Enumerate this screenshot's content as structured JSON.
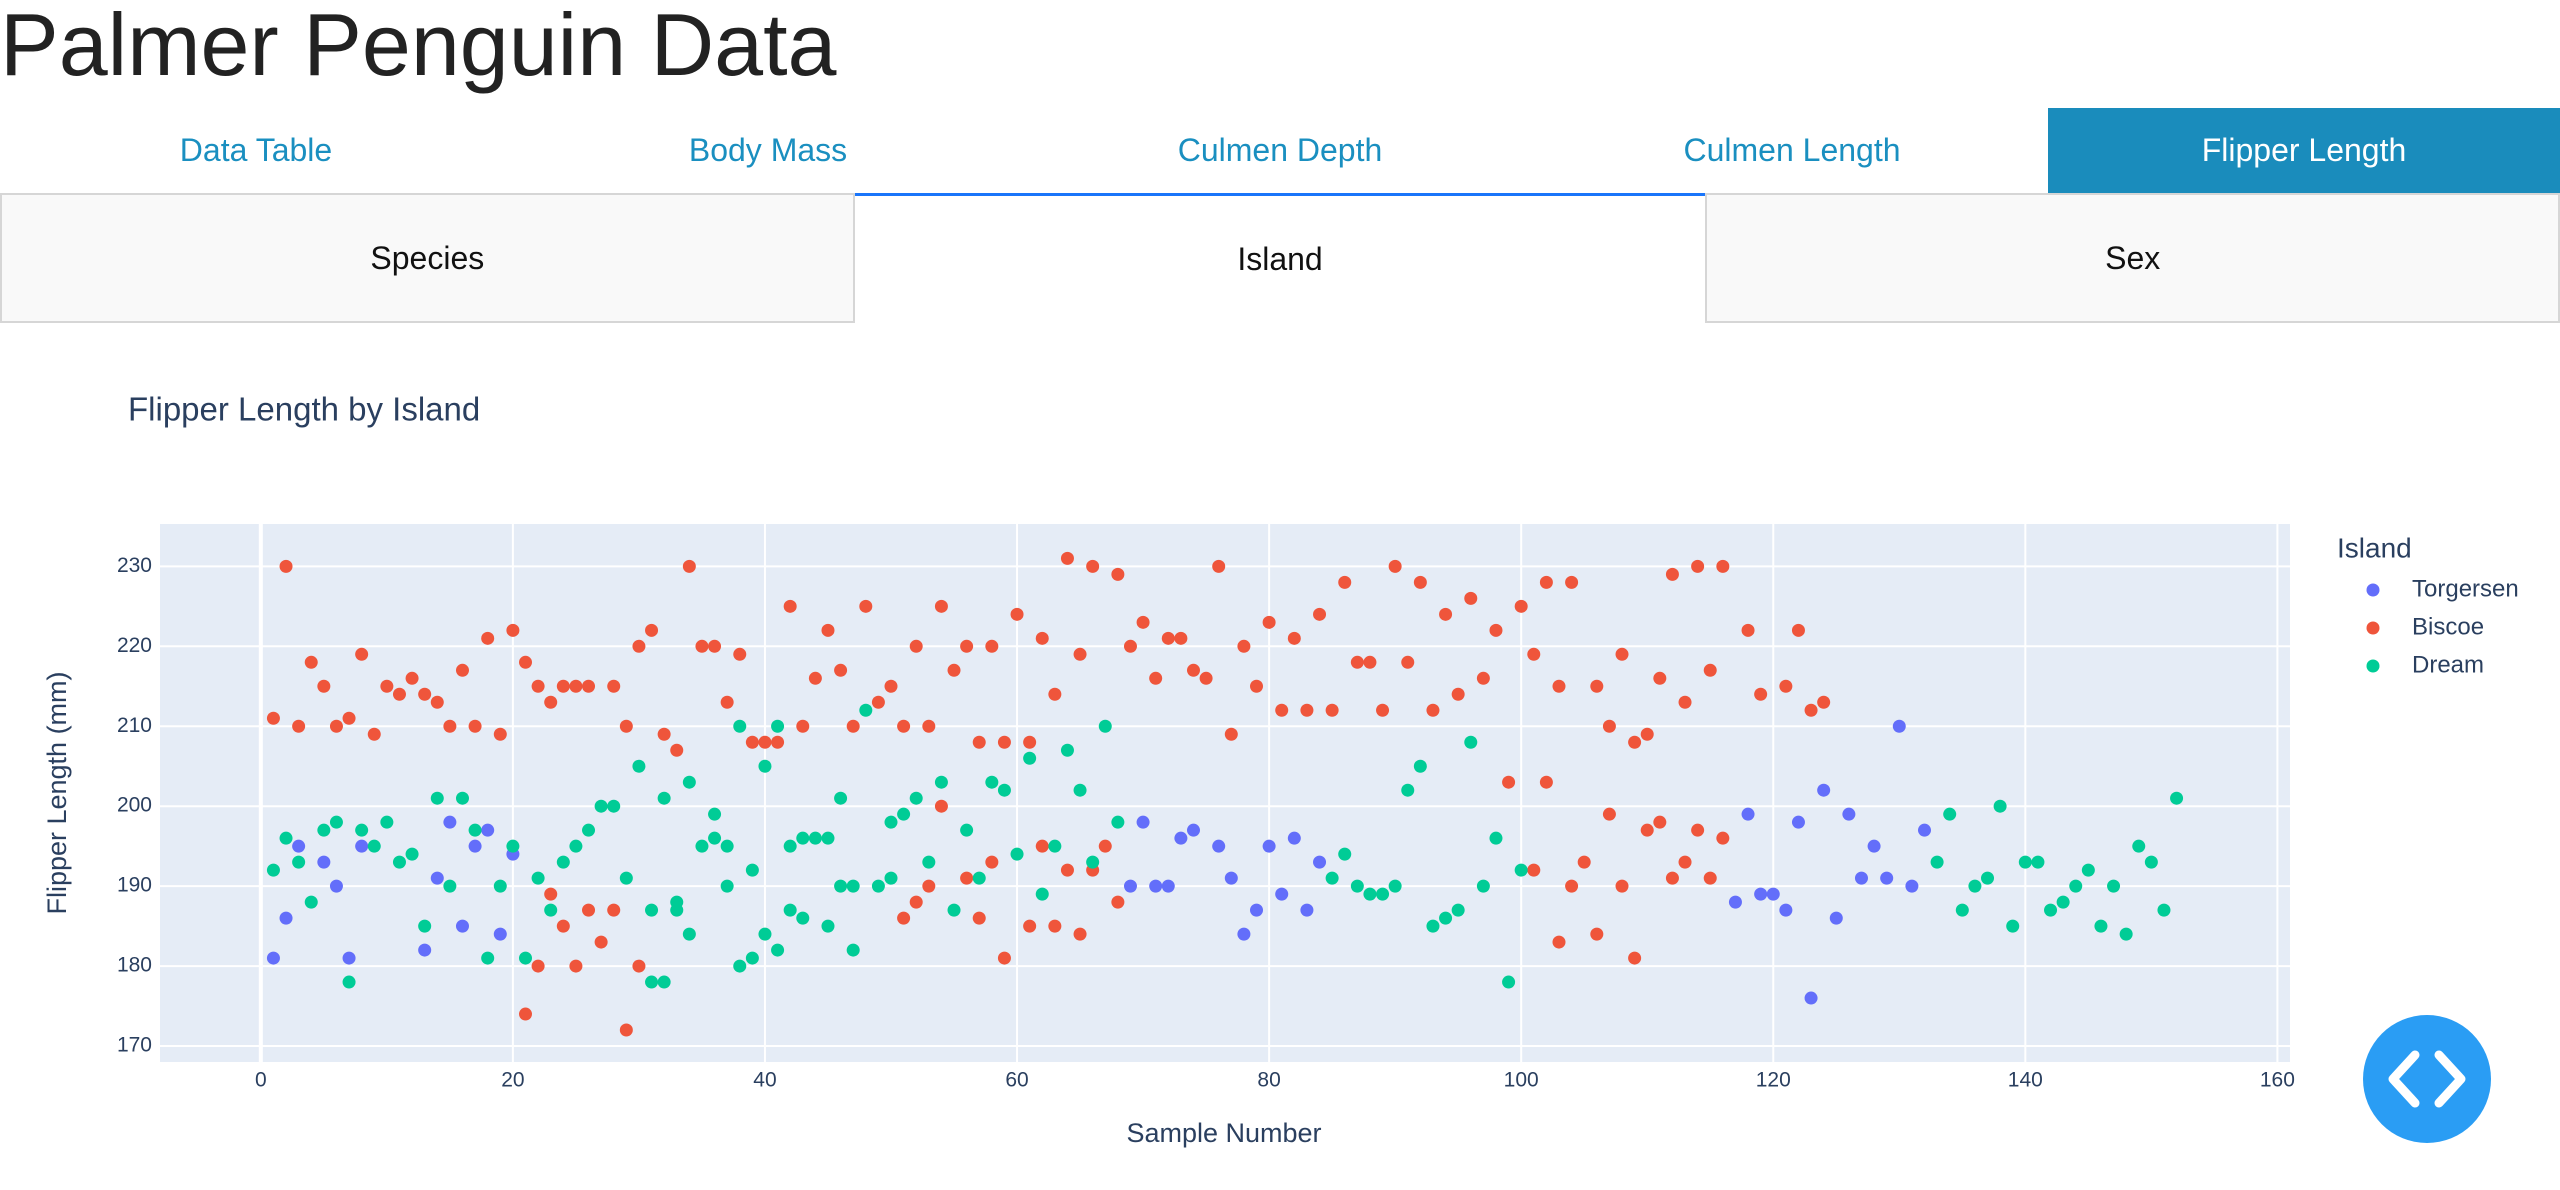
{
  "header": {
    "title": "Palmer Penguin Data"
  },
  "tabs": [
    "Data Table",
    "Body Mass",
    "Culmen Depth",
    "Culmen Length",
    "Flipper Length"
  ],
  "subtabs": [
    "Species",
    "Island",
    "Sex"
  ],
  "chart_data": {
    "type": "scatter",
    "title": "Flipper Length by Island",
    "x_label": "Sample Number",
    "y_label": "Flipper Length (mm)",
    "legend_title": "Island",
    "grid": true,
    "xlim": [
      -8,
      161
    ],
    "ylim": [
      168,
      235.3
    ],
    "xticks": [
      0,
      20,
      40,
      60,
      80,
      100,
      120,
      140,
      160
    ],
    "yticks": [
      170,
      180,
      190,
      200,
      210,
      220,
      230
    ],
    "series": [
      {
        "name": "Torgersen",
        "color": "#636efa",
        "x": [
          1,
          2,
          3,
          5,
          6,
          7,
          8,
          13,
          14,
          15,
          16,
          17,
          18,
          19,
          20,
          69,
          70,
          71,
          72,
          73,
          74,
          76,
          77,
          78,
          79,
          80,
          81,
          82,
          83,
          84,
          117,
          118,
          119,
          120,
          121,
          122,
          123,
          124,
          125,
          126,
          127,
          128,
          129,
          130,
          131,
          132
        ],
        "values": [
          181,
          186,
          195,
          193,
          190,
          181,
          195,
          182,
          191,
          198,
          185,
          195,
          197,
          184,
          194,
          190,
          198,
          190,
          190,
          196,
          197,
          195,
          191,
          184,
          187,
          195,
          189,
          196,
          187,
          193,
          188,
          199,
          189,
          189,
          187,
          198,
          176,
          202,
          186,
          199,
          191,
          195,
          191,
          210,
          190,
          197
        ]
      },
      {
        "name": "Biscoe",
        "color": "#ef553b",
        "x": [
          1,
          2,
          3,
          4,
          5,
          6,
          7,
          8,
          9,
          10,
          11,
          12,
          13,
          14,
          15,
          16,
          17,
          18,
          19,
          20,
          21,
          21,
          22,
          22,
          23,
          23,
          24,
          24,
          25,
          25,
          26,
          26,
          27,
          28,
          28,
          29,
          29,
          30,
          30,
          31,
          32,
          33,
          34,
          35,
          36,
          37,
          38,
          39,
          40,
          41,
          42,
          43,
          44,
          45,
          46,
          47,
          48,
          49,
          50,
          51,
          51,
          52,
          52,
          53,
          53,
          54,
          54,
          55,
          56,
          56,
          57,
          57,
          58,
          58,
          59,
          59,
          60,
          61,
          61,
          62,
          62,
          63,
          63,
          64,
          64,
          65,
          65,
          66,
          66,
          67,
          68,
          68,
          69,
          70,
          71,
          72,
          73,
          74,
          75,
          76,
          77,
          78,
          79,
          80,
          81,
          82,
          83,
          84,
          85,
          86,
          87,
          88,
          89,
          90,
          91,
          92,
          93,
          94,
          95,
          96,
          97,
          98,
          99,
          100,
          101,
          101,
          102,
          102,
          103,
          103,
          104,
          104,
          105,
          106,
          106,
          107,
          107,
          108,
          108,
          109,
          109,
          110,
          110,
          111,
          111,
          112,
          112,
          113,
          113,
          114,
          114,
          115,
          115,
          116,
          116,
          118,
          119,
          121,
          122,
          123,
          124
        ],
        "values": [
          211,
          230,
          210,
          218,
          215,
          210,
          211,
          219,
          209,
          215,
          214,
          216,
          214,
          213,
          210,
          217,
          210,
          221,
          209,
          222,
          218,
          174,
          215,
          180,
          213,
          189,
          215,
          185,
          215,
          180,
          215,
          187,
          183,
          215,
          187,
          210,
          172,
          220,
          180,
          222,
          209,
          207,
          230,
          220,
          220,
          213,
          219,
          208,
          208,
          208,
          225,
          210,
          216,
          222,
          217,
          210,
          225,
          213,
          215,
          210,
          186,
          220,
          188,
          210,
          190,
          225,
          200,
          217,
          220,
          191,
          208,
          186,
          220,
          193,
          208,
          181,
          224,
          208,
          185,
          221,
          195,
          214,
          185,
          231,
          192,
          219,
          184,
          230,
          192,
          195,
          229,
          188,
          220,
          223,
          216,
          221,
          221,
          217,
          216,
          230,
          209,
          220,
          215,
          223,
          212,
          221,
          212,
          224,
          212,
          228,
          218,
          218,
          212,
          230,
          218,
          228,
          212,
          224,
          214,
          226,
          216,
          222,
          203,
          225,
          219,
          192,
          228,
          203,
          215,
          183,
          228,
          190,
          193,
          215,
          184,
          210,
          199,
          219,
          190,
          208,
          181,
          209,
          197,
          216,
          198,
          229,
          191,
          213,
          193,
          230,
          197,
          217,
          191,
          230,
          196,
          222,
          214,
          215,
          222,
          212,
          213
        ]
      },
      {
        "name": "Dream",
        "color": "#00cc96",
        "x": [
          1,
          2,
          3,
          4,
          5,
          6,
          7,
          8,
          9,
          10,
          11,
          12,
          13,
          14,
          15,
          16,
          17,
          18,
          19,
          20,
          21,
          22,
          23,
          24,
          25,
          26,
          27,
          28,
          29,
          30,
          31,
          31,
          32,
          32,
          33,
          33,
          34,
          34,
          35,
          36,
          36,
          37,
          37,
          38,
          38,
          39,
          39,
          40,
          40,
          41,
          41,
          42,
          42,
          43,
          43,
          44,
          45,
          45,
          46,
          46,
          47,
          47,
          48,
          49,
          50,
          50,
          51,
          52,
          53,
          54,
          55,
          56,
          57,
          58,
          59,
          60,
          61,
          62,
          63,
          64,
          65,
          66,
          67,
          68,
          85,
          86,
          87,
          88,
          89,
          90,
          91,
          92,
          93,
          94,
          95,
          96,
          97,
          98,
          99,
          100,
          133,
          134,
          135,
          136,
          137,
          138,
          139,
          140,
          141,
          142,
          143,
          144,
          145,
          146,
          147,
          148,
          149,
          150,
          151,
          152
        ],
        "values": [
          192,
          196,
          193,
          188,
          197,
          198,
          178,
          197,
          195,
          198,
          193,
          194,
          185,
          201,
          190,
          201,
          197,
          181,
          190,
          195,
          181,
          191,
          187,
          193,
          195,
          197,
          200,
          200,
          191,
          205,
          187,
          178,
          201,
          178,
          187,
          188,
          203,
          184,
          195,
          199,
          196,
          195,
          190,
          210,
          180,
          192,
          181,
          205,
          184,
          210,
          182,
          195,
          187,
          196,
          186,
          196,
          196,
          185,
          201,
          190,
          190,
          182,
          212,
          190,
          198,
          191,
          199,
          201,
          193,
          203,
          187,
          197,
          191,
          203,
          202,
          194,
          206,
          189,
          195,
          207,
          202,
          193,
          210,
          198,
          191,
          194,
          190,
          189,
          189,
          190,
          202,
          205,
          185,
          186,
          187,
          208,
          190,
          196,
          178,
          192,
          193,
          199,
          187,
          190,
          191,
          200,
          185,
          193,
          193,
          187,
          188,
          190,
          192,
          185,
          190,
          184,
          195,
          193,
          187,
          201
        ]
      }
    ]
  }
}
